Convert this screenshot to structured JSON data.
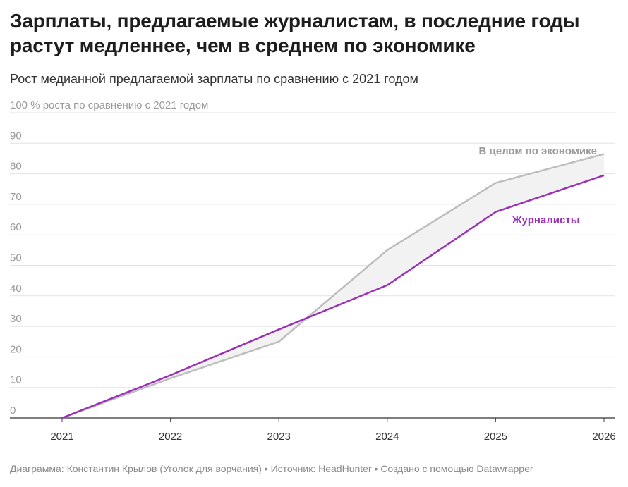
{
  "title": "Зарплаты, предлагаемые журналистам, в последние годы растут медленнее, чем в среднем по экономике",
  "subtitle": "Рост медианной предлагаемой зарплаты по сравнению с 2021 годом",
  "footer": "Диаграмма: Константин Крылов (Уголок для ворчания) • Источник: HeadHunter • Создано с помощью Datawrapper",
  "colors": {
    "journalists": "#9b30b8",
    "economy": "#bdbdbd",
    "gap_fill": "#f2f2f2",
    "grid": "#e2e2e2",
    "axis_text": "#999999",
    "economy_label": "#9a9a9a"
  },
  "chart_data": {
    "type": "line",
    "title": "",
    "xlabel": "",
    "ylabel": "% роста по сравнению с 2021 годом",
    "x": [
      2021,
      2022,
      2023,
      2024,
      2025,
      2026
    ],
    "ylim": [
      0,
      100
    ],
    "yticks": [
      0,
      10,
      20,
      30,
      40,
      50,
      60,
      70,
      80,
      90,
      100
    ],
    "top_tick_label": "100 % роста по сравнению с 2021 годом",
    "grid": true,
    "series": [
      {
        "name": "В целом по экономике",
        "values": [
          0,
          13,
          25,
          55,
          77,
          86.5
        ]
      },
      {
        "name": "Журналисты",
        "values": [
          0,
          14,
          29,
          43.5,
          67.5,
          79.5
        ]
      }
    ]
  }
}
